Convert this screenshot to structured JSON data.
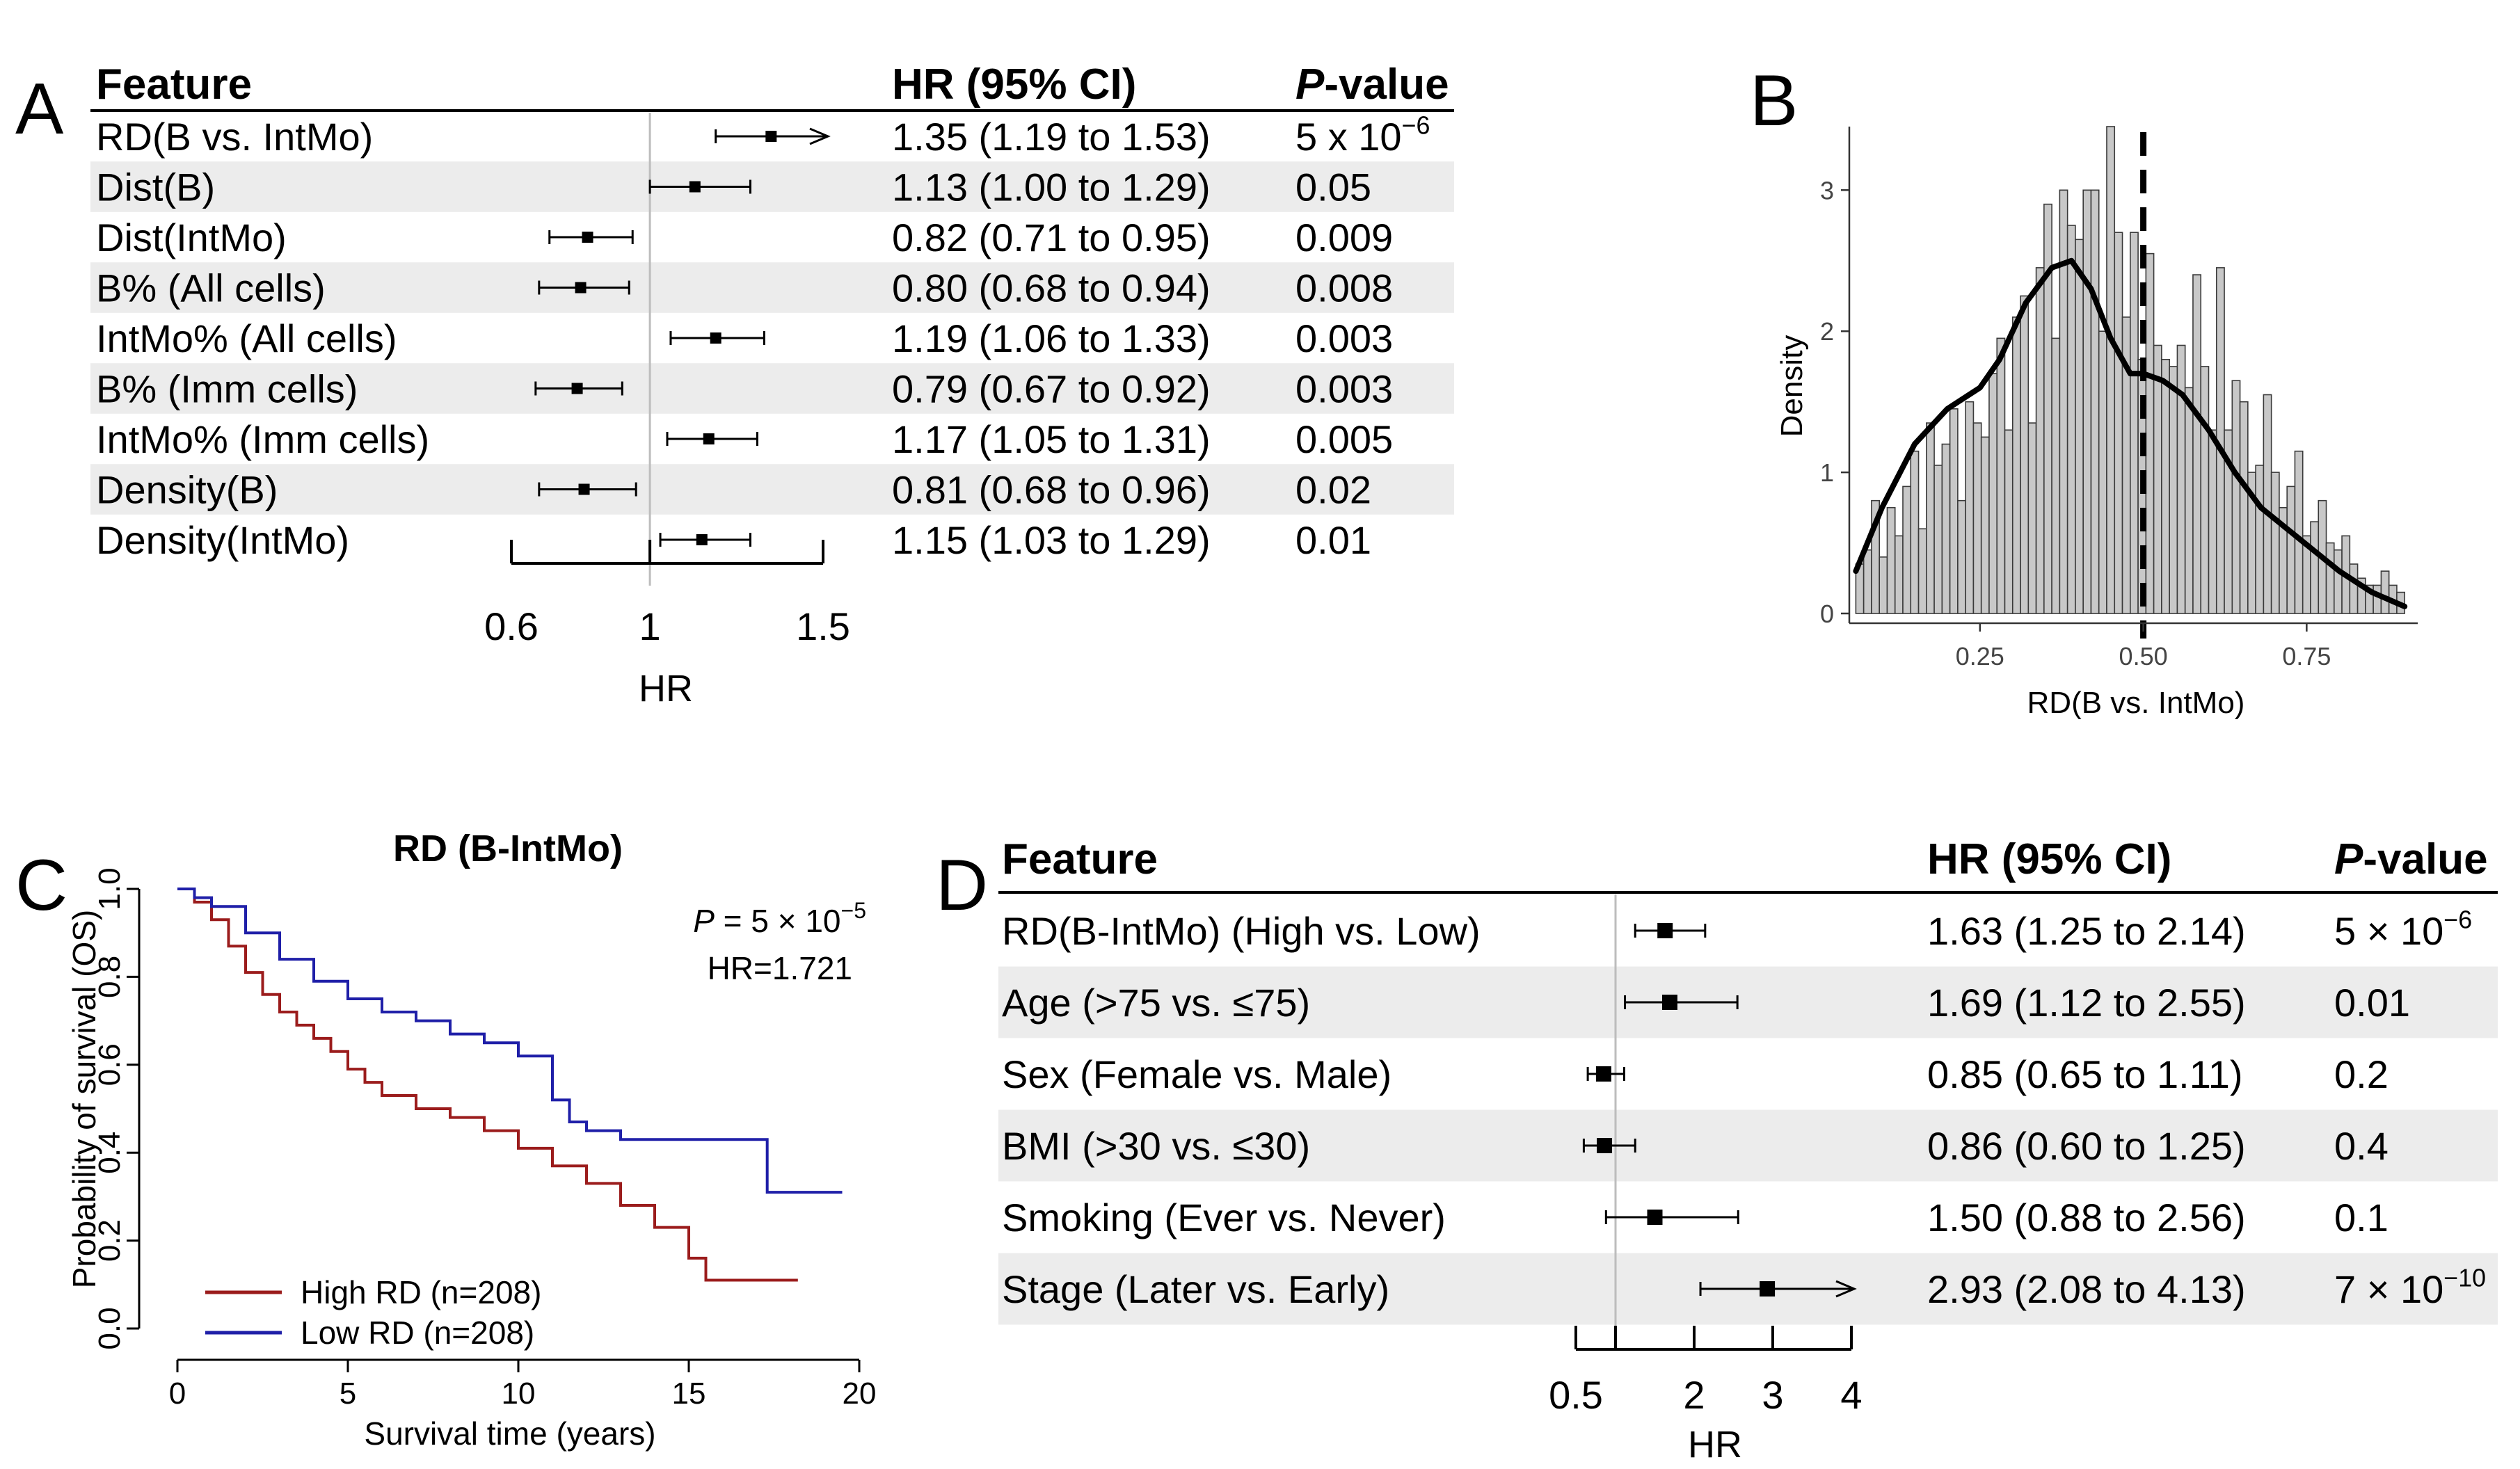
{
  "panels": {
    "A": {
      "letter": "A",
      "headers": {
        "feature": "Feature",
        "hr": "HR (95% CI)",
        "p_italic": "P",
        "p_rest": "-value"
      },
      "rows": [
        {
          "feature": "RD(B vs. IntMo)",
          "hr_text": "1.35 (1.19 to 1.53)",
          "p_text": "5 x 10",
          "p_exp": "−6",
          "hr": 1.35,
          "lo": 1.19,
          "hi": 1.53,
          "shaded": false,
          "arrow": true
        },
        {
          "feature": "Dist(B)",
          "hr_text": "1.13 (1.00 to 1.29)",
          "p_text": "0.05",
          "p_exp": "",
          "hr": 1.13,
          "lo": 1.0,
          "hi": 1.29,
          "shaded": true,
          "arrow": false
        },
        {
          "feature": "Dist(IntMo)",
          "hr_text": "0.82 (0.71 to 0.95)",
          "p_text": "0.009",
          "p_exp": "",
          "hr": 0.82,
          "lo": 0.71,
          "hi": 0.95,
          "shaded": false,
          "arrow": false
        },
        {
          "feature": "B% (All cells)",
          "hr_text": "0.80 (0.68 to 0.94)",
          "p_text": "0.008",
          "p_exp": "",
          "hr": 0.8,
          "lo": 0.68,
          "hi": 0.94,
          "shaded": true,
          "arrow": false
        },
        {
          "feature": "IntMo% (All cells)",
          "hr_text": "1.19 (1.06 to 1.33)",
          "p_text": "0.003",
          "p_exp": "",
          "hr": 1.19,
          "lo": 1.06,
          "hi": 1.33,
          "shaded": false,
          "arrow": false
        },
        {
          "feature": "B% (Imm cells)",
          "hr_text": "0.79 (0.67 to 0.92)",
          "p_text": "0.003",
          "p_exp": "",
          "hr": 0.79,
          "lo": 0.67,
          "hi": 0.92,
          "shaded": true,
          "arrow": false
        },
        {
          "feature": "IntMo% (Imm cells)",
          "hr_text": "1.17 (1.05 to 1.31)",
          "p_text": "0.005",
          "p_exp": "",
          "hr": 1.17,
          "lo": 1.05,
          "hi": 1.31,
          "shaded": false,
          "arrow": false
        },
        {
          "feature": "Density(B)",
          "hr_text": "0.81 (0.68 to 0.96)",
          "p_text": "0.02",
          "p_exp": "",
          "hr": 0.81,
          "lo": 0.68,
          "hi": 0.96,
          "shaded": true,
          "arrow": false
        },
        {
          "feature": "Density(IntMo)",
          "hr_text": "1.15 (1.03 to 1.29)",
          "p_text": "0.01",
          "p_exp": "",
          "hr": 1.15,
          "lo": 1.03,
          "hi": 1.29,
          "shaded": false,
          "arrow": false
        }
      ],
      "axis": {
        "ticks": [
          0.6,
          1,
          1.5
        ],
        "tick_labels": [
          "0.6",
          "1",
          "1.5"
        ],
        "label": "HR"
      }
    },
    "B": {
      "letter": "B",
      "ylabel": "Density",
      "xlabel": "RD(B vs. IntMo)",
      "yticks": [
        0,
        1,
        2,
        3
      ],
      "ytick_labels": [
        "0",
        "1",
        "2",
        "3"
      ],
      "xticks": [
        0.25,
        0.5,
        0.75
      ],
      "xtick_labels": [
        "0.25",
        "0.50",
        "0.75"
      ]
    },
    "C": {
      "letter": "C",
      "title": "RD (B-IntMo)",
      "ylabel": "Probability of survival (OS)",
      "xlabel": "Survival time (years)",
      "yticks": [
        0.0,
        0.2,
        0.4,
        0.6,
        0.8,
        1.0
      ],
      "ytick_labels": [
        "0.0",
        "0.2",
        "0.4",
        "0.6",
        "0.8",
        "1.0"
      ],
      "xticks": [
        0,
        5,
        10,
        15,
        20
      ],
      "xtick_labels": [
        "0",
        "5",
        "10",
        "15",
        "20"
      ],
      "p_label": "P",
      "p_value": " = 5 × 10",
      "p_exp": "−5",
      "hr_label": "HR=1.721",
      "legend": [
        {
          "label": "High RD (n=208)",
          "color": "#9b1c1c"
        },
        {
          "label": "Low RD (n=208)",
          "color": "#1f1fa8"
        }
      ]
    },
    "D": {
      "letter": "D",
      "headers": {
        "feature": "Feature",
        "hr": "HR (95% CI)",
        "p_italic": "P",
        "p_rest": "-value"
      },
      "rows": [
        {
          "feature": "RD(B-IntMo) (High vs. Low)",
          "hr_text": "1.63 (1.25 to 2.14)",
          "p_text": "5 × 10",
          "p_exp": "−6",
          "hr": 1.63,
          "lo": 1.25,
          "hi": 2.14,
          "shaded": false,
          "arrow": false
        },
        {
          "feature": "Age (>75 vs. ≤75)",
          "hr_text": "1.69 (1.12 to 2.55)",
          "p_text": "0.01",
          "p_exp": "",
          "hr": 1.69,
          "lo": 1.12,
          "hi": 2.55,
          "shaded": true,
          "arrow": false
        },
        {
          "feature": "Sex (Female vs. Male)",
          "hr_text": "0.85 (0.65 to 1.11)",
          "p_text": "0.2",
          "p_exp": "",
          "hr": 0.85,
          "lo": 0.65,
          "hi": 1.11,
          "shaded": false,
          "arrow": false
        },
        {
          "feature": "BMI (>30 vs. ≤30)",
          "hr_text": "0.86 (0.60 to 1.25)",
          "p_text": "0.4",
          "p_exp": "",
          "hr": 0.86,
          "lo": 0.6,
          "hi": 1.25,
          "shaded": true,
          "arrow": false
        },
        {
          "feature": "Smoking (Ever vs. Never)",
          "hr_text": "1.50 (0.88 to 2.56)",
          "p_text": "0.1",
          "p_exp": "",
          "hr": 1.5,
          "lo": 0.88,
          "hi": 2.56,
          "shaded": false,
          "arrow": false
        },
        {
          "feature": "Stage (Later vs. Early)",
          "hr_text": "2.93 (2.08 to 4.13)",
          "p_text": "7 × 10",
          "p_exp": "−10",
          "hr": 2.93,
          "lo": 2.08,
          "hi": 4.13,
          "shaded": true,
          "arrow": true
        }
      ],
      "axis": {
        "ticks": [
          0.5,
          2,
          3,
          4
        ],
        "tick_labels": [
          "0.5",
          "2",
          "3",
          "4"
        ],
        "label": "HR"
      }
    }
  },
  "chart_data": [
    {
      "type": "forest",
      "panel": "A",
      "xlabel": "HR",
      "xlim": [
        0.6,
        1.5
      ],
      "reference_line": 1,
      "categories": [
        "RD(B vs. IntMo)",
        "Dist(B)",
        "Dist(IntMo)",
        "B% (All cells)",
        "IntMo% (All cells)",
        "B% (Imm cells)",
        "IntMo% (Imm cells)",
        "Density(B)",
        "Density(IntMo)"
      ],
      "hr": [
        1.35,
        1.13,
        0.82,
        0.8,
        1.19,
        0.79,
        1.17,
        0.81,
        1.15
      ],
      "ci_low": [
        1.19,
        1.0,
        0.71,
        0.68,
        1.06,
        0.67,
        1.05,
        0.68,
        1.03
      ],
      "ci_high": [
        1.53,
        1.29,
        0.95,
        0.94,
        1.33,
        0.92,
        1.31,
        0.96,
        1.29
      ]
    },
    {
      "type": "histogram",
      "panel": "B",
      "xlabel": "RD(B vs. IntMo)",
      "ylabel": "Density",
      "xlim": [
        0.05,
        0.92
      ],
      "ylim": [
        0,
        3.45
      ],
      "bin_start": 0.06,
      "bin_width": 0.012,
      "bin_heights": [
        0.35,
        0.45,
        0.8,
        0.4,
        0.75,
        0.55,
        0.9,
        1.15,
        0.6,
        1.35,
        1.05,
        1.2,
        1.45,
        0.8,
        1.5,
        1.35,
        1.25,
        1.7,
        1.95,
        1.3,
        2.1,
        2.25,
        1.35,
        2.45,
        2.9,
        1.95,
        3.0,
        2.75,
        2.65,
        3.0,
        3.0,
        2.0,
        3.45,
        2.7,
        2.1,
        2.7,
        1.8,
        2.55,
        1.9,
        1.8,
        1.75,
        1.9,
        1.6,
        2.4,
        1.75,
        1.3,
        2.45,
        1.3,
        1.65,
        1.5,
        1.0,
        1.05,
        1.55,
        1.0,
        0.75,
        0.9,
        1.15,
        0.55,
        0.65,
        0.8,
        0.5,
        0.45,
        0.55,
        0.35,
        0.25,
        0.2,
        0.2,
        0.3,
        0.2,
        0.15
      ],
      "density_x": [
        0.06,
        0.1,
        0.15,
        0.2,
        0.25,
        0.28,
        0.32,
        0.36,
        0.39,
        0.42,
        0.45,
        0.48,
        0.5,
        0.53,
        0.56,
        0.6,
        0.64,
        0.68,
        0.72,
        0.76,
        0.8,
        0.85,
        0.9
      ],
      "density_y": [
        0.3,
        0.75,
        1.2,
        1.45,
        1.6,
        1.8,
        2.2,
        2.45,
        2.5,
        2.3,
        1.95,
        1.7,
        1.7,
        1.65,
        1.55,
        1.3,
        1.0,
        0.75,
        0.6,
        0.45,
        0.3,
        0.15,
        0.05
      ],
      "vline": 0.5
    },
    {
      "type": "line",
      "panel": "C",
      "title": "RD (B-IntMo)",
      "xlabel": "Survival time (years)",
      "ylabel": "Probability of survival (OS)",
      "xlim": [
        0,
        20
      ],
      "ylim": [
        0,
        1
      ],
      "series": [
        {
          "name": "High RD (n=208)",
          "x": [
            0,
            0.5,
            1,
            1.5,
            2,
            2.5,
            3,
            3.5,
            4,
            4.5,
            5,
            5.5,
            6,
            7,
            8,
            9,
            10,
            11,
            12,
            13,
            14,
            15,
            15.5,
            18.2
          ],
          "y": [
            1.0,
            0.97,
            0.93,
            0.87,
            0.81,
            0.76,
            0.72,
            0.69,
            0.66,
            0.63,
            0.59,
            0.56,
            0.53,
            0.5,
            0.48,
            0.45,
            0.41,
            0.37,
            0.33,
            0.28,
            0.23,
            0.16,
            0.11,
            0.11
          ]
        },
        {
          "name": "Low RD (n=208)",
          "x": [
            0,
            0.5,
            1,
            2,
            3,
            4,
            5,
            6,
            7,
            8,
            9,
            10,
            11,
            11.5,
            12,
            13,
            15,
            17.3,
            19.5
          ],
          "y": [
            1.0,
            0.98,
            0.96,
            0.9,
            0.84,
            0.79,
            0.75,
            0.72,
            0.7,
            0.67,
            0.65,
            0.62,
            0.52,
            0.47,
            0.45,
            0.43,
            0.43,
            0.31,
            0.31
          ]
        }
      ]
    },
    {
      "type": "forest",
      "panel": "D",
      "xlabel": "HR",
      "reference_line": 1,
      "categories": [
        "RD(B-IntMo) (High vs. Low)",
        "Age (>75 vs. ≤75)",
        "Sex (Female vs. Male)",
        "BMI (>30 vs. ≤30)",
        "Smoking (Ever vs. Never)",
        "Stage (Later vs. Early)"
      ],
      "hr": [
        1.63,
        1.69,
        0.85,
        0.86,
        1.5,
        2.93
      ],
      "ci_low": [
        1.25,
        1.12,
        0.65,
        0.6,
        0.88,
        2.08
      ],
      "ci_high": [
        2.14,
        2.55,
        1.11,
        1.25,
        2.56,
        4.13
      ]
    }
  ]
}
